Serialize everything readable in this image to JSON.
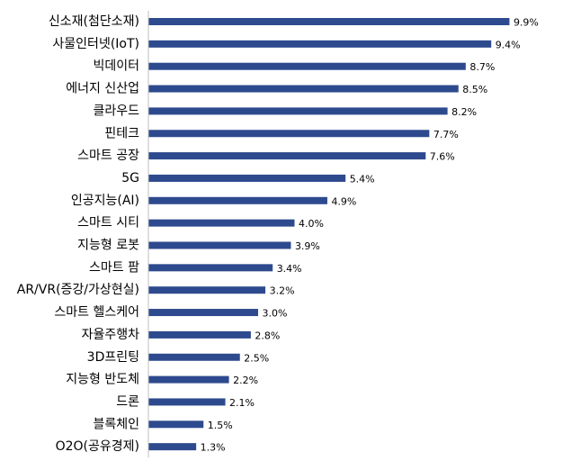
{
  "chart_data": {
    "type": "bar",
    "orientation": "horizontal",
    "title": "",
    "xlabel": "",
    "ylabel": "",
    "unit": "%",
    "xlim": [
      0,
      10
    ],
    "grid": false,
    "legend": "none",
    "bar_color": "#2E4A8E",
    "categories": [
      "신소재(첨단소재)",
      "사물인터넷(IoT)",
      "빅데이터",
      "에너지 신산업",
      "클라우드",
      "핀테크",
      "스마트 공장",
      "5G",
      "인공지능(AI)",
      "스마트 시티",
      "지능형 로봇",
      "스마트 팜",
      "AR/VR(증강/가상현실)",
      "스마트 헬스케어",
      "자율주행차",
      "3D프린팅",
      "지능형 반도체",
      "드론",
      "블록체인",
      "O2O(공유경제)"
    ],
    "values": [
      9.9,
      9.4,
      8.7,
      8.5,
      8.2,
      7.7,
      7.6,
      5.4,
      4.9,
      4.0,
      3.9,
      3.4,
      3.2,
      3.0,
      2.8,
      2.5,
      2.2,
      2.1,
      1.5,
      1.3
    ],
    "value_labels": [
      "9.9%",
      "9.4%",
      "8.7%",
      "8.5%",
      "8.2%",
      "7.7%",
      "7.6%",
      "5.4%",
      "4.9%",
      "4.0%",
      "3.9%",
      "3.4%",
      "3.2%",
      "3.0%",
      "2.8%",
      "2.5%",
      "2.2%",
      "2.1%",
      "1.5%",
      "1.3%"
    ]
  }
}
